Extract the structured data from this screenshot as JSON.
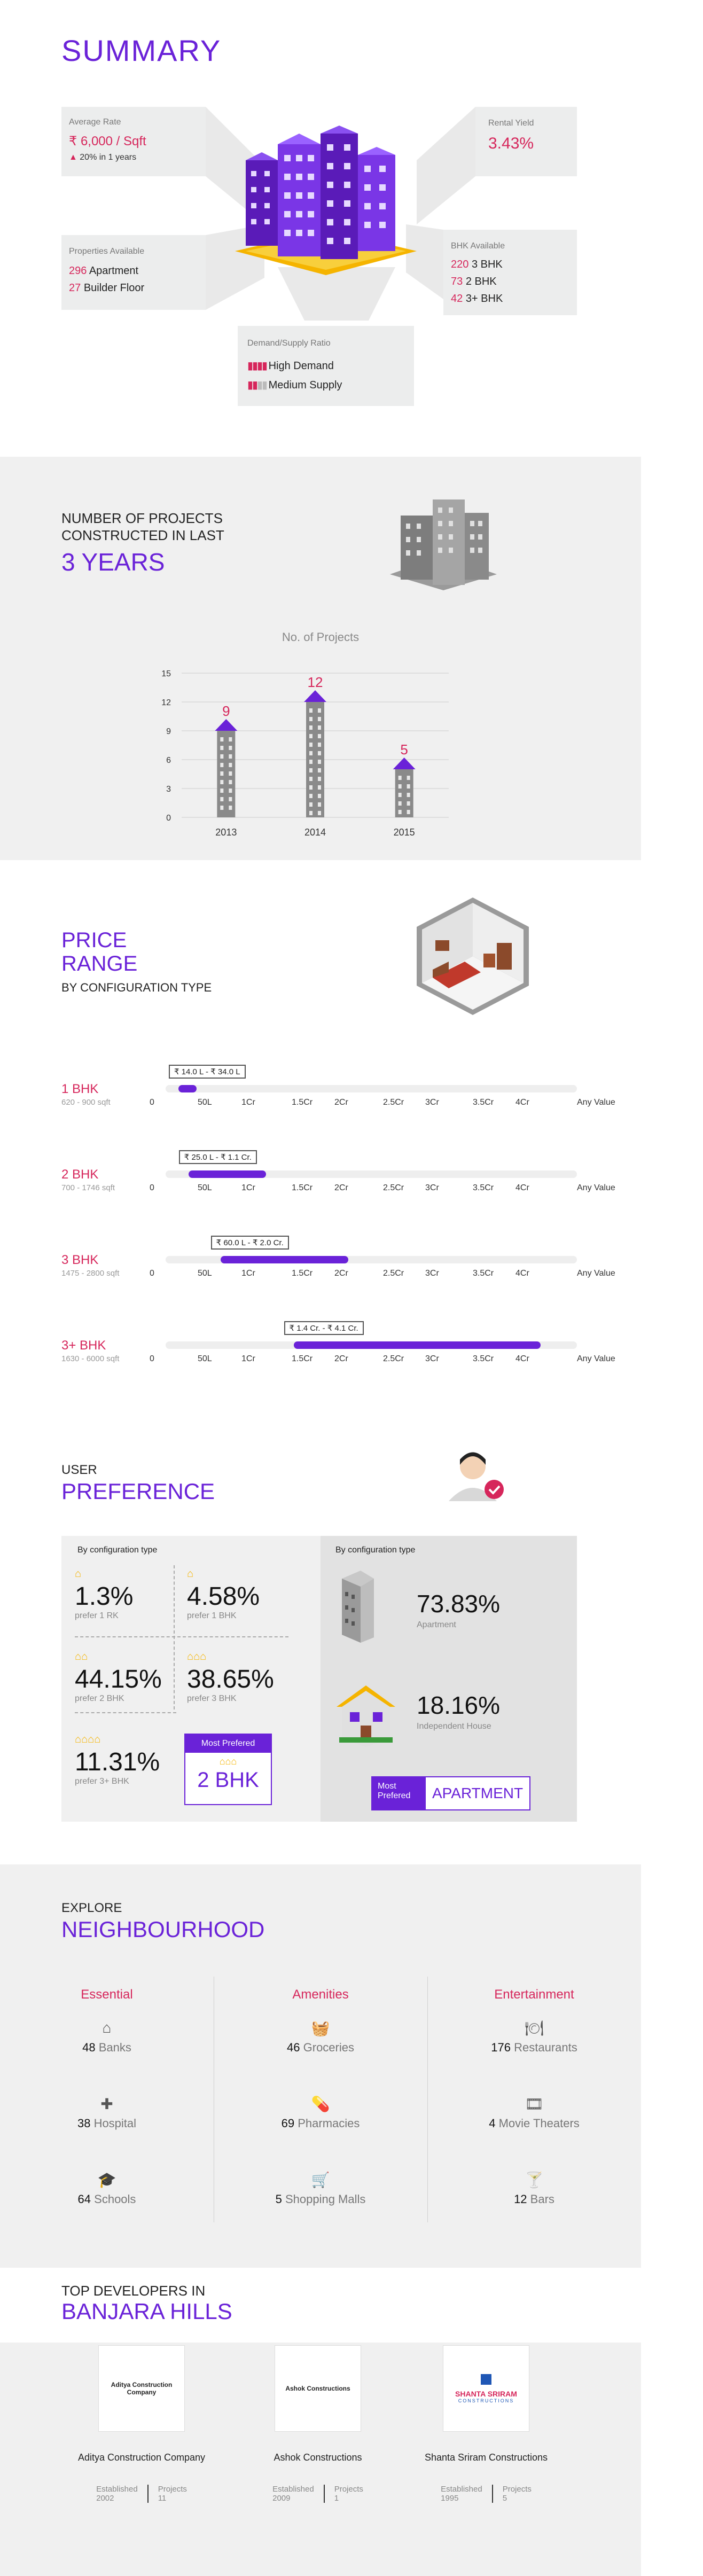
{
  "summary": {
    "title": "SUMMARY",
    "average_rate": {
      "label": "Average Rate",
      "value": "₹ 6,000 / Sqft",
      "change": "20% in 1 years"
    },
    "rental_yield": {
      "label": "Rental Yield",
      "value": "3.43%"
    },
    "properties_available": {
      "label": "Properties Available",
      "items": [
        {
          "count": "296",
          "type": "Apartment"
        },
        {
          "count": "27",
          "type": "Builder Floor"
        }
      ]
    },
    "bhk_available": {
      "label": "BHK Available",
      "items": [
        {
          "count": "220",
          "type": "3 BHK"
        },
        {
          "count": "73",
          "type": "2 BHK"
        },
        {
          "count": "42",
          "type": "3+ BHK"
        }
      ]
    },
    "demand_supply": {
      "label": "Demand/Supply Ratio",
      "demand": "High Demand",
      "supply": "Medium Supply"
    }
  },
  "projects": {
    "heading_line1": "NUMBER OF PROJECTS",
    "heading_line2": "CONSTRUCTED IN LAST",
    "heading_big": "3 YEARS",
    "chart_title": "No. of Projects"
  },
  "chart_data": {
    "type": "bar",
    "title": "No. of Projects",
    "categories": [
      "2013",
      "2014",
      "2015"
    ],
    "values": [
      9,
      12,
      5
    ],
    "ylim": [
      0,
      15
    ],
    "yticks": [
      0,
      3,
      6,
      9,
      12,
      15
    ],
    "xlabel": "",
    "ylabel": "",
    "grid": true,
    "colors": {
      "bar": "#8a8a8a",
      "label": "#d6265b",
      "roof": "#6a22d8"
    }
  },
  "price_range": {
    "title_line1": "PRICE",
    "title_line2": "RANGE",
    "subtitle": "BY CONFIGURATION TYPE",
    "scale_labels": [
      "0",
      "50L",
      "1Cr",
      "1.5Cr",
      "2Cr",
      "2.5Cr",
      "3Cr",
      "3.5Cr",
      "4Cr",
      "Any Value"
    ],
    "rows": [
      {
        "name": "1 BHK",
        "area": "620 - 900 sqft",
        "range": "₹ 14.0 L - ₹ 34.0 L",
        "min_cr": 0.14,
        "max_cr": 0.34
      },
      {
        "name": "2 BHK",
        "area": "700 - 1746 sqft",
        "range": "₹ 25.0 L - ₹ 1.1 Cr.",
        "min_cr": 0.25,
        "max_cr": 1.1
      },
      {
        "name": "3 BHK",
        "area": "1475 - 2800 sqft",
        "range": "₹ 60.0 L - ₹ 2.0 Cr.",
        "min_cr": 0.6,
        "max_cr": 2.0
      },
      {
        "name": "3+ BHK",
        "area": "1630 - 6000 sqft",
        "range": "₹ 1.4 Cr. - ₹ 4.1 Cr.",
        "min_cr": 1.4,
        "max_cr": 4.1
      }
    ]
  },
  "preference": {
    "title_small": "USER",
    "title_big": "PREFERENCE",
    "left_header": "By configuration type",
    "right_header": "By configuration type",
    "cells": [
      {
        "value": "1.3%",
        "label": "prefer 1 RK",
        "icons": 1
      },
      {
        "value": "4.58%",
        "label": "prefer 1 BHK",
        "icons": 1
      },
      {
        "value": "44.15%",
        "label": "prefer 2 BHK",
        "icons": 2
      },
      {
        "value": "38.65%",
        "label": "prefer 3 BHK",
        "icons": 3
      },
      {
        "value": "11.31%",
        "label": "prefer 3+ BHK",
        "icons": 4
      }
    ],
    "most_preferred": {
      "label": "Most Prefered",
      "value": "2 BHK"
    },
    "types": [
      {
        "value": "73.83%",
        "label": "Apartment"
      },
      {
        "value": "18.16%",
        "label": "Independent House"
      }
    ],
    "type_badge": {
      "label": "Most Prefered",
      "value": "APARTMENT"
    }
  },
  "neighbourhood": {
    "title_small": "EXPLORE",
    "title_big": "NEIGHBOURHOOD",
    "columns": [
      {
        "title": "Essential",
        "items": [
          {
            "count": "48",
            "name": "Banks",
            "icon": "bank-icon"
          },
          {
            "count": "38",
            "name": "Hospital",
            "icon": "hospital-icon"
          },
          {
            "count": "64",
            "name": "Schools",
            "icon": "school-icon"
          }
        ]
      },
      {
        "title": "Amenities",
        "items": [
          {
            "count": "46",
            "name": "Groceries",
            "icon": "basket-icon"
          },
          {
            "count": "69",
            "name": "Pharmacies",
            "icon": "pill-icon"
          },
          {
            "count": "5",
            "name": "Shopping Malls",
            "icon": "cart-icon"
          }
        ]
      },
      {
        "title": "Entertainment",
        "items": [
          {
            "count": "176",
            "name": "Restaurants",
            "icon": "dish-icon"
          },
          {
            "count": "4",
            "name": "Movie Theaters",
            "icon": "film-icon"
          },
          {
            "count": "12",
            "name": "Bars",
            "icon": "cocktail-icon"
          }
        ]
      }
    ]
  },
  "developers": {
    "title_small": "TOP DEVELOPERS IN",
    "title_big": "BANJARA HILLS",
    "established_label": "Established",
    "projects_label": "Projects",
    "items": [
      {
        "name": "Aditya Construction Company",
        "logo_text": "Aditya Construction Company",
        "established": "2002",
        "projects": "11"
      },
      {
        "name": "Ashok Constructions",
        "logo_text": "Ashok Constructions",
        "established": "2009",
        "projects": "1"
      },
      {
        "name": "Shanta Sriram Constructions",
        "logo_text": "SHANTA SRIRAM",
        "logo_sub": "CONSTRUCTIONS",
        "established": "1995",
        "projects": "5"
      }
    ]
  },
  "colors": {
    "accent": "#6a22d8",
    "highlight": "#d6265b",
    "panel": "#eceded",
    "gold": "#f5b400"
  }
}
